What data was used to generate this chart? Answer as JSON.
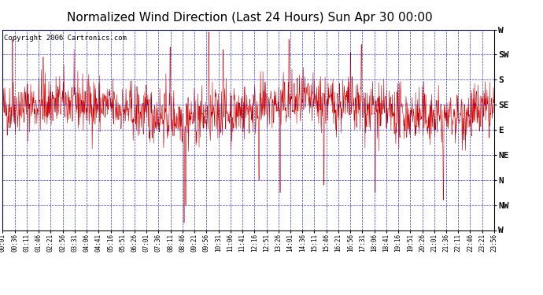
{
  "title": "Normalized Wind Direction (Last 24 Hours) Sun Apr 30 00:00",
  "copyright": "Copyright 2006 Cartronics.com",
  "ytick_labels": [
    "W",
    "SW",
    "S",
    "SE",
    "E",
    "NE",
    "N",
    "NW",
    "W"
  ],
  "ytick_values": [
    8,
    7,
    6,
    5,
    4,
    3,
    2,
    1,
    0
  ],
  "ylim": [
    0,
    8
  ],
  "bg_color": "#ffffff",
  "plot_bg_color": "#ffffff",
  "line_color": "#cc0000",
  "grid_color": "#0000cc",
  "title_fontsize": 11,
  "copyright_fontsize": 6.5,
  "xtick_fontsize": 5.5,
  "ytick_fontsize": 8,
  "x_labels": [
    "00:01",
    "00:36",
    "01:11",
    "01:46",
    "02:21",
    "02:56",
    "03:31",
    "04:06",
    "04:41",
    "05:16",
    "05:51",
    "06:26",
    "07:01",
    "07:36",
    "08:11",
    "08:46",
    "09:21",
    "09:56",
    "10:31",
    "11:06",
    "11:41",
    "12:16",
    "12:51",
    "13:26",
    "14:01",
    "14:36",
    "15:11",
    "15:46",
    "16:21",
    "16:56",
    "17:31",
    "18:06",
    "18:41",
    "19:16",
    "19:51",
    "20:26",
    "21:01",
    "21:36",
    "22:11",
    "22:46",
    "23:21",
    "23:56"
  ],
  "n_points": 1440,
  "seed": 42
}
